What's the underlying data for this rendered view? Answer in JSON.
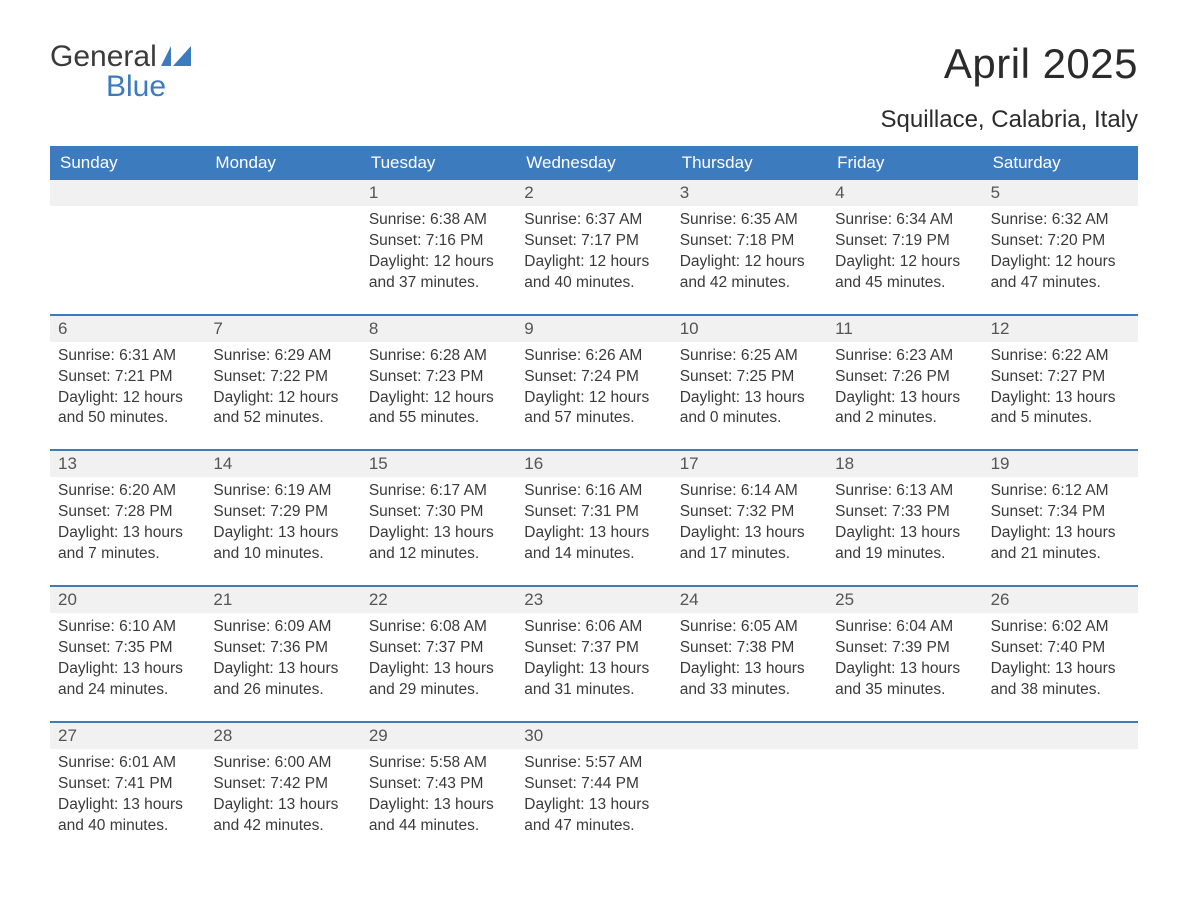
{
  "logo": {
    "word1": "General",
    "word2": "Blue",
    "flag_color": "#3d7bbf"
  },
  "title": "April 2025",
  "location": "Squillace, Calabria, Italy",
  "colors": {
    "header_bg": "#3d7bbf",
    "header_text": "#ffffff",
    "daynum_bg": "#f1f1f1",
    "daynum_text": "#555555",
    "body_text": "#3a3a3a",
    "week_border": "#3d7bbf",
    "page_bg": "#ffffff"
  },
  "weekdays": [
    "Sunday",
    "Monday",
    "Tuesday",
    "Wednesday",
    "Thursday",
    "Friday",
    "Saturday"
  ],
  "weeks": [
    [
      {
        "day": "",
        "sunrise": "",
        "sunset": "",
        "daylight": ""
      },
      {
        "day": "",
        "sunrise": "",
        "sunset": "",
        "daylight": ""
      },
      {
        "day": "1",
        "sunrise": "Sunrise: 6:38 AM",
        "sunset": "Sunset: 7:16 PM",
        "daylight": "Daylight: 12 hours and 37 minutes."
      },
      {
        "day": "2",
        "sunrise": "Sunrise: 6:37 AM",
        "sunset": "Sunset: 7:17 PM",
        "daylight": "Daylight: 12 hours and 40 minutes."
      },
      {
        "day": "3",
        "sunrise": "Sunrise: 6:35 AM",
        "sunset": "Sunset: 7:18 PM",
        "daylight": "Daylight: 12 hours and 42 minutes."
      },
      {
        "day": "4",
        "sunrise": "Sunrise: 6:34 AM",
        "sunset": "Sunset: 7:19 PM",
        "daylight": "Daylight: 12 hours and 45 minutes."
      },
      {
        "day": "5",
        "sunrise": "Sunrise: 6:32 AM",
        "sunset": "Sunset: 7:20 PM",
        "daylight": "Daylight: 12 hours and 47 minutes."
      }
    ],
    [
      {
        "day": "6",
        "sunrise": "Sunrise: 6:31 AM",
        "sunset": "Sunset: 7:21 PM",
        "daylight": "Daylight: 12 hours and 50 minutes."
      },
      {
        "day": "7",
        "sunrise": "Sunrise: 6:29 AM",
        "sunset": "Sunset: 7:22 PM",
        "daylight": "Daylight: 12 hours and 52 minutes."
      },
      {
        "day": "8",
        "sunrise": "Sunrise: 6:28 AM",
        "sunset": "Sunset: 7:23 PM",
        "daylight": "Daylight: 12 hours and 55 minutes."
      },
      {
        "day": "9",
        "sunrise": "Sunrise: 6:26 AM",
        "sunset": "Sunset: 7:24 PM",
        "daylight": "Daylight: 12 hours and 57 minutes."
      },
      {
        "day": "10",
        "sunrise": "Sunrise: 6:25 AM",
        "sunset": "Sunset: 7:25 PM",
        "daylight": "Daylight: 13 hours and 0 minutes."
      },
      {
        "day": "11",
        "sunrise": "Sunrise: 6:23 AM",
        "sunset": "Sunset: 7:26 PM",
        "daylight": "Daylight: 13 hours and 2 minutes."
      },
      {
        "day": "12",
        "sunrise": "Sunrise: 6:22 AM",
        "sunset": "Sunset: 7:27 PM",
        "daylight": "Daylight: 13 hours and 5 minutes."
      }
    ],
    [
      {
        "day": "13",
        "sunrise": "Sunrise: 6:20 AM",
        "sunset": "Sunset: 7:28 PM",
        "daylight": "Daylight: 13 hours and 7 minutes."
      },
      {
        "day": "14",
        "sunrise": "Sunrise: 6:19 AM",
        "sunset": "Sunset: 7:29 PM",
        "daylight": "Daylight: 13 hours and 10 minutes."
      },
      {
        "day": "15",
        "sunrise": "Sunrise: 6:17 AM",
        "sunset": "Sunset: 7:30 PM",
        "daylight": "Daylight: 13 hours and 12 minutes."
      },
      {
        "day": "16",
        "sunrise": "Sunrise: 6:16 AM",
        "sunset": "Sunset: 7:31 PM",
        "daylight": "Daylight: 13 hours and 14 minutes."
      },
      {
        "day": "17",
        "sunrise": "Sunrise: 6:14 AM",
        "sunset": "Sunset: 7:32 PM",
        "daylight": "Daylight: 13 hours and 17 minutes."
      },
      {
        "day": "18",
        "sunrise": "Sunrise: 6:13 AM",
        "sunset": "Sunset: 7:33 PM",
        "daylight": "Daylight: 13 hours and 19 minutes."
      },
      {
        "day": "19",
        "sunrise": "Sunrise: 6:12 AM",
        "sunset": "Sunset: 7:34 PM",
        "daylight": "Daylight: 13 hours and 21 minutes."
      }
    ],
    [
      {
        "day": "20",
        "sunrise": "Sunrise: 6:10 AM",
        "sunset": "Sunset: 7:35 PM",
        "daylight": "Daylight: 13 hours and 24 minutes."
      },
      {
        "day": "21",
        "sunrise": "Sunrise: 6:09 AM",
        "sunset": "Sunset: 7:36 PM",
        "daylight": "Daylight: 13 hours and 26 minutes."
      },
      {
        "day": "22",
        "sunrise": "Sunrise: 6:08 AM",
        "sunset": "Sunset: 7:37 PM",
        "daylight": "Daylight: 13 hours and 29 minutes."
      },
      {
        "day": "23",
        "sunrise": "Sunrise: 6:06 AM",
        "sunset": "Sunset: 7:37 PM",
        "daylight": "Daylight: 13 hours and 31 minutes."
      },
      {
        "day": "24",
        "sunrise": "Sunrise: 6:05 AM",
        "sunset": "Sunset: 7:38 PM",
        "daylight": "Daylight: 13 hours and 33 minutes."
      },
      {
        "day": "25",
        "sunrise": "Sunrise: 6:04 AM",
        "sunset": "Sunset: 7:39 PM",
        "daylight": "Daylight: 13 hours and 35 minutes."
      },
      {
        "day": "26",
        "sunrise": "Sunrise: 6:02 AM",
        "sunset": "Sunset: 7:40 PM",
        "daylight": "Daylight: 13 hours and 38 minutes."
      }
    ],
    [
      {
        "day": "27",
        "sunrise": "Sunrise: 6:01 AM",
        "sunset": "Sunset: 7:41 PM",
        "daylight": "Daylight: 13 hours and 40 minutes."
      },
      {
        "day": "28",
        "sunrise": "Sunrise: 6:00 AM",
        "sunset": "Sunset: 7:42 PM",
        "daylight": "Daylight: 13 hours and 42 minutes."
      },
      {
        "day": "29",
        "sunrise": "Sunrise: 5:58 AM",
        "sunset": "Sunset: 7:43 PM",
        "daylight": "Daylight: 13 hours and 44 minutes."
      },
      {
        "day": "30",
        "sunrise": "Sunrise: 5:57 AM",
        "sunset": "Sunset: 7:44 PM",
        "daylight": "Daylight: 13 hours and 47 minutes."
      },
      {
        "day": "",
        "sunrise": "",
        "sunset": "",
        "daylight": ""
      },
      {
        "day": "",
        "sunrise": "",
        "sunset": "",
        "daylight": ""
      },
      {
        "day": "",
        "sunrise": "",
        "sunset": "",
        "daylight": ""
      }
    ]
  ]
}
